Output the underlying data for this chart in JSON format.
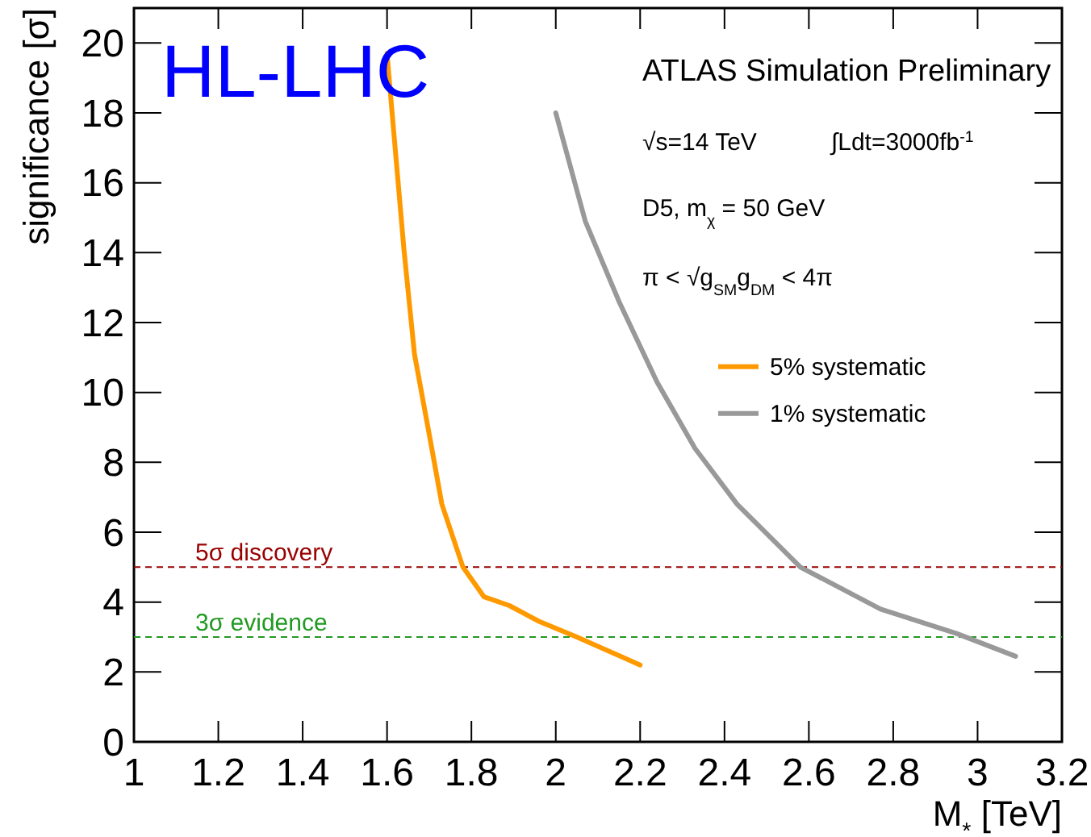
{
  "chart_data": {
    "type": "line",
    "xlabel": "M$_{*}$ [TeV]",
    "ylabel": "significance [σ]",
    "xlim": [
      1,
      3.2
    ],
    "xticks": [
      1,
      1.2,
      1.4,
      1.6,
      1.8,
      2,
      2.2,
      2.4,
      2.6,
      2.8,
      3,
      3.2
    ],
    "ylim": [
      0,
      21
    ],
    "yticks": [
      0,
      2,
      4,
      6,
      8,
      10,
      12,
      14,
      16,
      18,
      20
    ],
    "series": [
      {
        "name": "5% systematic",
        "color": "#ff9900",
        "x": [
          1.6,
          1.612,
          1.64,
          1.665,
          1.7,
          1.73,
          1.78,
          1.83,
          1.89,
          1.96,
          2.05,
          2.2
        ],
        "values": [
          19.7,
          18.0,
          14.1,
          11.1,
          8.8,
          6.8,
          5.0,
          4.15,
          3.9,
          3.45,
          3.0,
          2.2
        ]
      },
      {
        "name": "1% systematic",
        "color": "#999999",
        "x": [
          2.0,
          2.07,
          2.15,
          2.24,
          2.33,
          2.43,
          2.58,
          2.77,
          2.95,
          3.09
        ],
        "values": [
          18.0,
          14.9,
          12.6,
          10.3,
          8.4,
          6.8,
          5.0,
          3.8,
          3.1,
          2.45
        ]
      }
    ],
    "ref_lines": [
      {
        "axis": "y",
        "value": 5,
        "label": "5σ discovery",
        "color": "#990000",
        "line_style": "dashed"
      },
      {
        "axis": "y",
        "value": 3,
        "label": "3σ evidence",
        "color": "#229922",
        "line_style": "dashed"
      }
    ],
    "annotations": [
      "HL-LHC",
      "ATLAS Simulation Preliminary",
      "√s=14 TeV",
      "∫Ldt=3000fb$^{-1}$",
      "D5, m$_{χ}$ = 50 GeV",
      "π < √g$_{SM}$g$_{DM}$ < 4π"
    ],
    "legend": "right",
    "grid": false,
    "marker": "none",
    "line_style": "solid"
  }
}
